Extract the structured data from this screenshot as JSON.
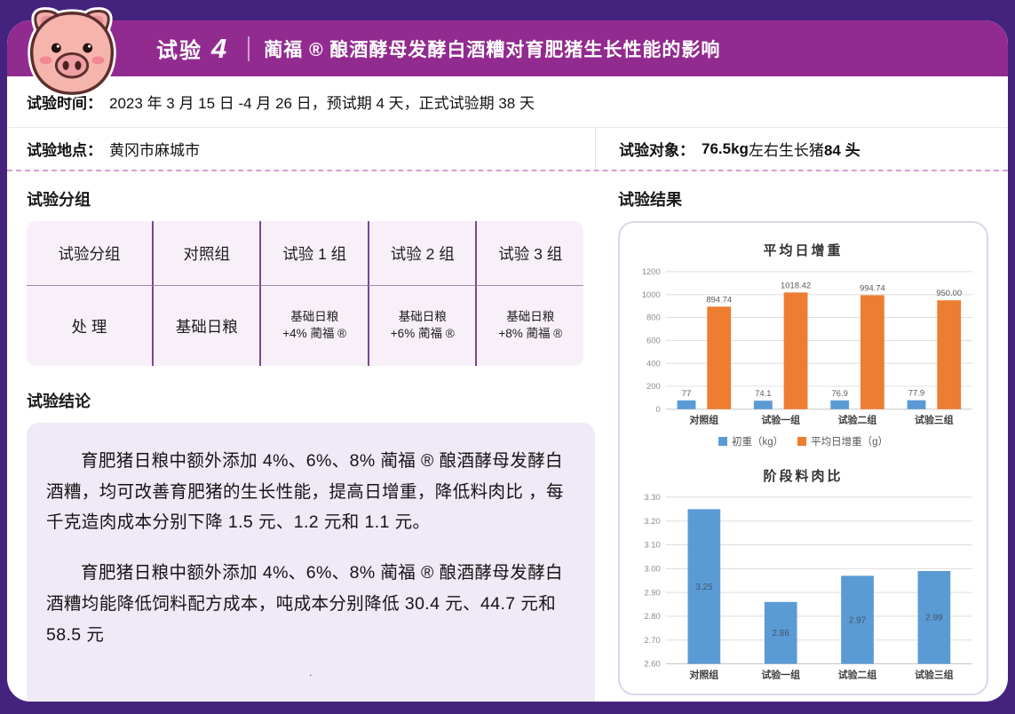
{
  "header": {
    "badge": "试验",
    "trial_number": "4",
    "title": "蔺福 ® 酿酒酵母发酵白酒糟对育肥猪生长性能的影响"
  },
  "info": {
    "time_label": "试验时间：",
    "time_value": "2023 年 3 月 15 日 -4 月 26 日，预试期 4 天，正式试验期 38 天",
    "location_label": "试验地点：",
    "location_value": "黄冈市麻城市",
    "subject_label": "试验对象：",
    "subject_bold1": "76.5kg",
    "subject_mid": " 左右生长猪 ",
    "subject_bold2": "84 头"
  },
  "groups": {
    "heading": "试验分组",
    "table": {
      "header_row": [
        "试验分组",
        "对照组",
        "试验 1 组",
        "试验 2 组",
        "试验 3 组"
      ],
      "treatment_label": "处 理",
      "control_value": "基础日粮",
      "t1": {
        "line1": "基础日粮",
        "line2": "+4% 蔺福 ®"
      },
      "t2": {
        "line1": "基础日粮",
        "line2": "+6% 蔺福 ®"
      },
      "t3": {
        "line1": "基础日粮",
        "line2": "+8% 蔺福 ®"
      }
    }
  },
  "conclusion": {
    "heading": "试验结论",
    "para1": "育肥猪日粮中额外添加 4%、6%、8% 蔺福 ® 酿酒酵母发酵白酒糟，均可改善育肥猪的生长性能，提高日增重，降低料肉比 ，每千克造肉成本分别下降 1.5 元、1.2 元和 1.1 元。",
    "para2": "育肥猪日粮中额外添加 4%、6%、8% 蔺福 ® 酿酒酵母发酵白酒糟均能降低饲料配方成本，吨成本分别降低 30.4 元、44.7 元和 58.5 元",
    "stray_mark": "."
  },
  "results": {
    "heading": "试验结果"
  },
  "chart_data": [
    {
      "type": "bar",
      "title": "平均日增重",
      "categories": [
        "对照组",
        "试验一组",
        "试验二组",
        "试验三组"
      ],
      "series": [
        {
          "name": "初重（kg）",
          "color": "#5B9BD5",
          "values": [
            77,
            74.1,
            76.9,
            77.9
          ],
          "labels": [
            "77",
            "74.1",
            "76.9",
            "77.9"
          ],
          "label_pos": "above"
        },
        {
          "name": "平均日增重（g）",
          "color": "#ED7D31",
          "values": [
            894.74,
            1018.42,
            994.74,
            950.0
          ],
          "labels": [
            "894.74",
            "1018.42",
            "994.74",
            "950.00"
          ],
          "label_pos": "above"
        }
      ],
      "ylim": [
        0,
        1200
      ],
      "ystep": 200,
      "tick_decimals": 0,
      "legend_position": "bottom",
      "grid": true
    },
    {
      "type": "bar",
      "title": "阶段料肉比",
      "categories": [
        "对照组",
        "试验一组",
        "试验二组",
        "试验三组"
      ],
      "series": [
        {
          "name": "阶段料肉比",
          "color": "#5B9BD5",
          "values": [
            3.25,
            2.86,
            2.97,
            2.99
          ],
          "labels": [
            "3.25",
            "2.86",
            "2.97",
            "2.99"
          ],
          "label_pos": "inside"
        }
      ],
      "ylim": [
        2.6,
        3.3
      ],
      "ystep": 0.1,
      "tick_decimals": 2,
      "legend_position": "none",
      "grid": true
    }
  ],
  "colors": {
    "outer_purple": "#44237E",
    "band_magenta": "#922B8F",
    "table_bg": "#F8F0F8",
    "conclusion_bg": "#F0E9F6",
    "bar_blue": "#5B9BD5",
    "bar_orange": "#ED7D31",
    "dashed_pink": "#D79FD4"
  }
}
